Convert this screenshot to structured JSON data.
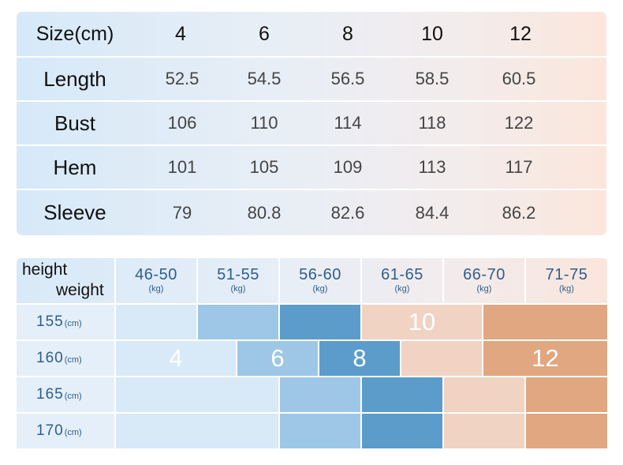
{
  "size_table": {
    "header_label": "Size(cm)",
    "sizes": [
      "4",
      "6",
      "8",
      "10",
      "12"
    ],
    "rows": [
      {
        "label": "Length",
        "values": [
          "52.5",
          "54.5",
          "56.5",
          "58.5",
          "60.5"
        ]
      },
      {
        "label": "Bust",
        "values": [
          "106",
          "110",
          "114",
          "118",
          "122"
        ]
      },
      {
        "label": "Hem",
        "values": [
          "101",
          "105",
          "109",
          "113",
          "117"
        ]
      },
      {
        "label": "Sleeve",
        "values": [
          "79",
          "80.8",
          "82.6",
          "84.4",
          "86.2"
        ]
      }
    ]
  },
  "recommendation": {
    "corner_height": "height",
    "corner_weight": "weight",
    "weight_unit": "(kg)",
    "height_unit": "(cm)",
    "weights": [
      "46-50",
      "51-55",
      "56-60",
      "61-65",
      "66-70",
      "71-75"
    ],
    "heights": [
      {
        "value": "155",
        "blocks": [
          {
            "size": "",
            "tone": "c1"
          },
          {
            "size": "",
            "tone": "c2"
          },
          {
            "size": "",
            "tone": "c3"
          },
          {
            "size": "10",
            "tone": "c4"
          },
          {
            "size": "",
            "tone": "c5"
          }
        ]
      },
      {
        "value": "160",
        "blocks": [
          {
            "size": "4",
            "tone": "c1"
          },
          {
            "size": "6",
            "tone": "c2"
          },
          {
            "size": "8",
            "tone": "c3"
          },
          {
            "size": "",
            "tone": "c4"
          },
          {
            "size": "12",
            "tone": "c5"
          }
        ]
      },
      {
        "value": "165",
        "blocks": [
          {
            "size": "",
            "tone": "c1"
          },
          {
            "size": "",
            "tone": "c2"
          },
          {
            "size": "",
            "tone": "c3"
          },
          {
            "size": "",
            "tone": "c4"
          },
          {
            "size": "",
            "tone": "c5"
          }
        ]
      },
      {
        "value": "170",
        "blocks": [
          {
            "size": "",
            "tone": "c1"
          },
          {
            "size": "",
            "tone": "c2"
          },
          {
            "size": "",
            "tone": "c3"
          },
          {
            "size": "",
            "tone": "c4"
          },
          {
            "size": "",
            "tone": "c5"
          }
        ]
      }
    ],
    "colors": {
      "c1": "#d8e9f8",
      "c2": "#9ec7e7",
      "c3": "#5b9ccb",
      "c4": "#f0d3c3",
      "c5": "#e0a781"
    }
  }
}
